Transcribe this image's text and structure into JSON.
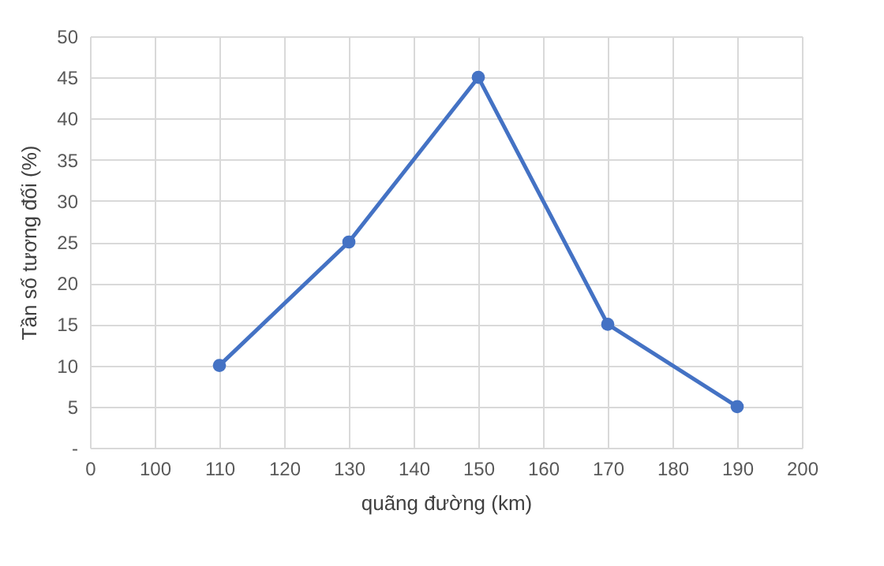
{
  "chart_data": {
    "type": "line",
    "xlabel": "quãng đường (km)",
    "ylabel": "Tần số tương đối (%)",
    "categories": [
      "0",
      "100",
      "110",
      "120",
      "130",
      "140",
      "150",
      "160",
      "170",
      "180",
      "190",
      "200"
    ],
    "series": [
      {
        "color": "#4472c4",
        "x": [
          "110",
          "130",
          "150",
          "170",
          "190"
        ],
        "values": [
          10,
          25,
          45,
          15,
          5
        ]
      }
    ],
    "ylim": [
      0,
      50
    ],
    "yticks": [
      {
        "value": 0,
        "label": "-"
      },
      5,
      10,
      15,
      20,
      25,
      30,
      35,
      40,
      45,
      50
    ],
    "grid": true,
    "marker": "circle",
    "line_style": "solid"
  }
}
